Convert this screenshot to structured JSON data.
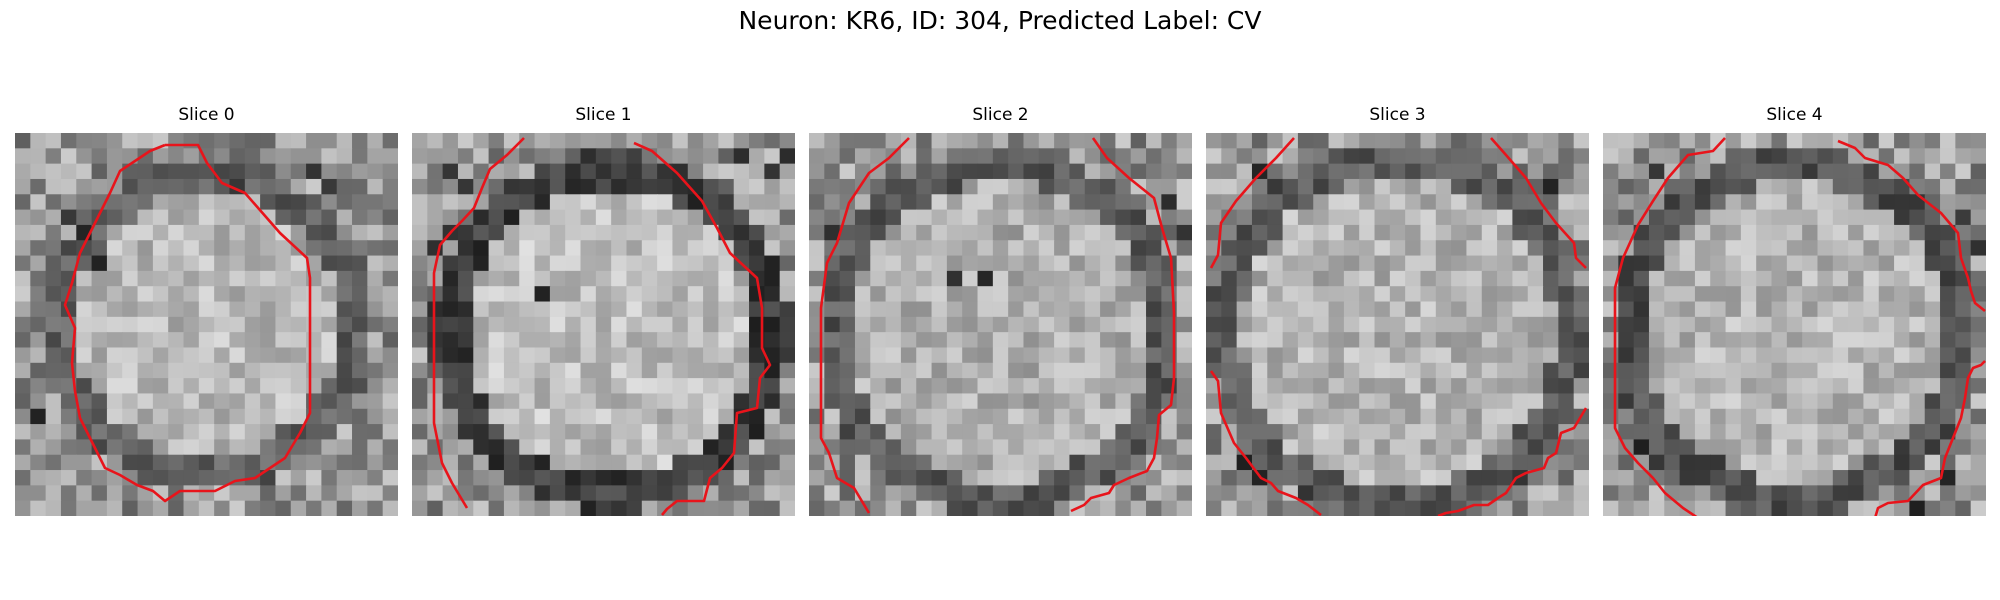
{
  "figure": {
    "title": "Neuron: KR6, ID: 304, Predicted Label: CV",
    "contour_color": "#e8141b"
  },
  "panels": [
    {
      "title": "Slice 0"
    },
    {
      "title": "Slice 1"
    },
    {
      "title": "Slice 2"
    },
    {
      "title": "Slice 3"
    },
    {
      "title": "Slice 4"
    }
  ]
}
